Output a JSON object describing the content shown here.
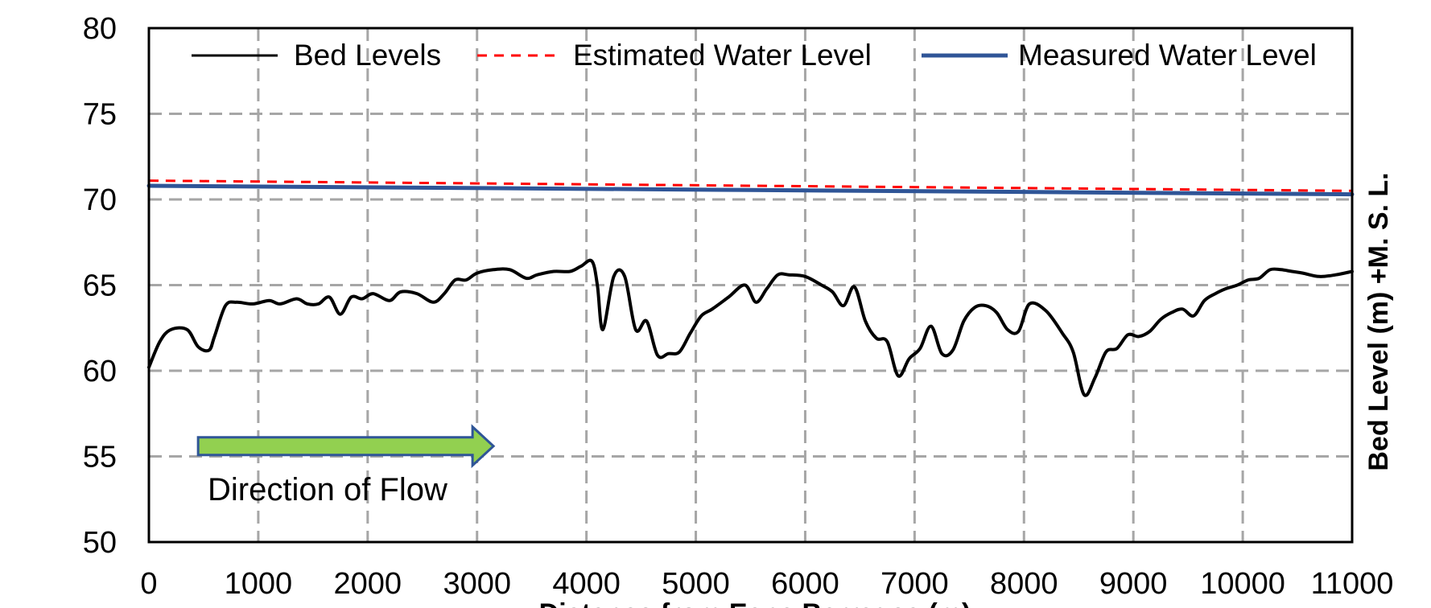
{
  "chart_data": {
    "type": "line",
    "title": "",
    "xlabel": "Distance from Esna Barrages (m)",
    "ylabel": "Bed Level (m) +M. S. L.",
    "xlim": [
      0,
      11000
    ],
    "ylim": [
      50,
      80
    ],
    "x_ticks": [
      0,
      1000,
      2000,
      3000,
      4000,
      5000,
      6000,
      7000,
      8000,
      9000,
      10000,
      11000
    ],
    "y_ticks": [
      50,
      55,
      60,
      65,
      70,
      75,
      80
    ],
    "grid": true,
    "legend_position": "top",
    "annotation": {
      "text": "Direction of Flow",
      "arrow_color": "#92d050",
      "arrow_border": "#2f5597",
      "arrow_from_x": 450,
      "arrow_to_x": 3150,
      "arrow_y": 55.6
    },
    "series": [
      {
        "name": "Bed Levels",
        "color": "#000000",
        "style": "solid",
        "x": [
          0,
          100,
          200,
          350,
          450,
          550,
          600,
          700,
          800,
          950,
          1100,
          1200,
          1350,
          1450,
          1550,
          1650,
          1750,
          1850,
          1950,
          2050,
          2200,
          2300,
          2450,
          2600,
          2700,
          2800,
          2900,
          3000,
          3150,
          3300,
          3450,
          3550,
          3700,
          3850,
          3950,
          4050,
          4100,
          4150,
          4250,
          4350,
          4450,
          4550,
          4650,
          4750,
          4850,
          4950,
          5050,
          5150,
          5300,
          5450,
          5550,
          5650,
          5750,
          5850,
          6000,
          6150,
          6250,
          6350,
          6450,
          6550,
          6650,
          6750,
          6850,
          6950,
          7050,
          7150,
          7250,
          7350,
          7450,
          7550,
          7650,
          7750,
          7850,
          7950,
          8050,
          8200,
          8350,
          8450,
          8550,
          8650,
          8750,
          8850,
          8950,
          9050,
          9150,
          9250,
          9350,
          9450,
          9550,
          9650,
          9750,
          9850,
          9950,
          10050,
          10150,
          10250,
          10350,
          10450,
          10550,
          10700,
          10850,
          11000
        ],
        "values": [
          60.2,
          61.7,
          62.4,
          62.4,
          61.4,
          61.2,
          62.0,
          63.8,
          64.0,
          63.9,
          64.1,
          63.9,
          64.2,
          63.9,
          63.9,
          64.3,
          63.3,
          64.3,
          64.2,
          64.5,
          64.1,
          64.6,
          64.5,
          64.0,
          64.5,
          65.3,
          65.3,
          65.7,
          65.9,
          65.9,
          65.4,
          65.6,
          65.8,
          65.8,
          66.1,
          66.4,
          65.0,
          62.4,
          65.5,
          65.5,
          62.4,
          62.9,
          60.9,
          61.0,
          61.1,
          62.2,
          63.2,
          63.6,
          64.3,
          65.0,
          64.0,
          64.8,
          65.6,
          65.6,
          65.5,
          65.0,
          64.6,
          63.8,
          64.9,
          62.9,
          61.9,
          61.7,
          59.7,
          60.7,
          61.3,
          62.6,
          61.0,
          61.2,
          62.9,
          63.7,
          63.8,
          63.4,
          62.4,
          62.3,
          63.9,
          63.5,
          62.2,
          61.1,
          58.6,
          59.6,
          61.1,
          61.3,
          62.1,
          62.0,
          62.3,
          63.0,
          63.4,
          63.6,
          63.2,
          64.1,
          64.5,
          64.8,
          65.0,
          65.3,
          65.4,
          65.9,
          65.9,
          65.8,
          65.7,
          65.5,
          65.6,
          65.8
        ]
      },
      {
        "name": "Estimated Water Level",
        "color": "#ff0000",
        "style": "dashed",
        "x": [
          0,
          11000
        ],
        "values": [
          71.1,
          70.5
        ]
      },
      {
        "name": "Measured Water Level",
        "color": "#2f5597",
        "style": "solid",
        "x": [
          0,
          11000
        ],
        "values": [
          70.8,
          70.3
        ]
      }
    ]
  }
}
